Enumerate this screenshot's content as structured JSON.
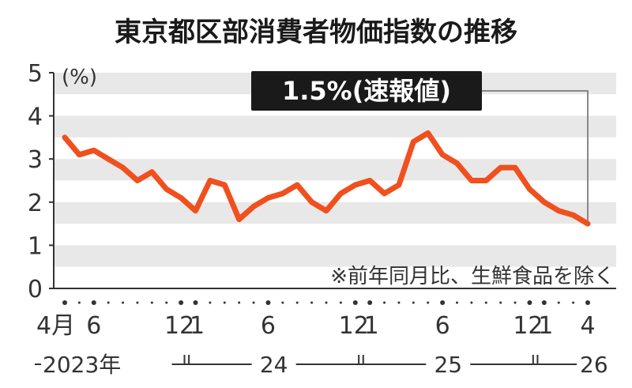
{
  "chart_data": {
    "type": "line",
    "title": "東京都区部消費者物価指数の推移",
    "ylabel": "(%)",
    "ylim": [
      0,
      5
    ],
    "y_ticks": [
      "0",
      "1",
      "2",
      "3",
      "4",
      "5"
    ],
    "note": "※前年同月比、生鮮食品を除く",
    "callout": "1.5%(速報値)",
    "x_tick_labels": [
      {
        "index": 0,
        "text": "4月"
      },
      {
        "index": 2,
        "text": "6"
      },
      {
        "index": 8,
        "text": "12"
      },
      {
        "index": 9,
        "text": "1"
      },
      {
        "index": 14,
        "text": "6"
      },
      {
        "index": 20,
        "text": "12"
      },
      {
        "index": 21,
        "text": "1"
      },
      {
        "index": 26,
        "text": "6"
      },
      {
        "index": 32,
        "text": "12"
      },
      {
        "index": 33,
        "text": "1"
      },
      {
        "index": 36,
        "text": "4"
      }
    ],
    "year_labels": [
      {
        "text": "2023年",
        "from": 0,
        "to": 8
      },
      {
        "text": "24",
        "from": 9,
        "to": 20
      },
      {
        "text": "25",
        "from": 21,
        "to": 32
      },
      {
        "text": "26",
        "from": 33,
        "to": 36
      }
    ],
    "series": [
      {
        "color": "#f0501e",
        "values": [
          3.5,
          3.1,
          3.2,
          3.0,
          2.8,
          2.5,
          2.7,
          2.3,
          2.1,
          1.8,
          2.5,
          2.4,
          1.6,
          1.9,
          2.1,
          2.2,
          2.4,
          2.0,
          1.8,
          2.2,
          2.4,
          2.5,
          2.2,
          2.4,
          3.4,
          3.6,
          3.1,
          2.9,
          2.5,
          2.5,
          2.8,
          2.8,
          2.3,
          2.0,
          1.8,
          1.7,
          1.5
        ]
      }
    ]
  }
}
